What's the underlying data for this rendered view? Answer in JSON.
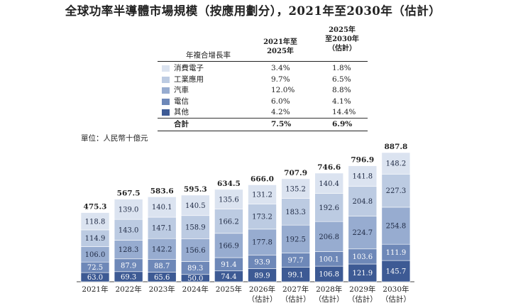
{
  "title": "全球功率半導體市場規模（按應用劃分），2021年至2030年（估計）",
  "cagr_table": {
    "label": "年複合增長率",
    "col1_header": [
      "2021年至",
      "2025年"
    ],
    "col2_header": [
      "2025年",
      "至2030年",
      "（估計）"
    ],
    "rows": [
      {
        "name": "消費電子",
        "c1": "3.4%",
        "c2": "1.8%",
        "color": "#dbe3f0"
      },
      {
        "name": "工業應用",
        "c1": "9.7%",
        "c2": "6.5%",
        "color": "#bccbe2"
      },
      {
        "name": "汽車",
        "c1": "12.0%",
        "c2": "8.8%",
        "color": "#97acd0"
      },
      {
        "name": "電信",
        "c1": "6.0%",
        "c2": "4.1%",
        "color": "#6e88b8"
      },
      {
        "name": "其他",
        "c1": "4.2%",
        "c2": "14.4%",
        "color": "#3d5a94"
      }
    ],
    "total": {
      "name": "合計",
      "c1": "7.5%",
      "c2": "6.9%"
    }
  },
  "unit_label": "單位：人民幣十億元",
  "chart_data": {
    "type": "bar",
    "stacked": true,
    "categories": [
      "2021年",
      "2022年",
      "2023年",
      "2024年",
      "2025年",
      "2026年",
      "2027年",
      "2028年",
      "2029年",
      "2030年"
    ],
    "category_sublabels": [
      "",
      "",
      "",
      "",
      "",
      "（估計）",
      "（估計）",
      "（估計）",
      "（估計）",
      "（估計）"
    ],
    "series": [
      {
        "name": "其他",
        "color": "#3d5a94",
        "values": [
          63.0,
          69.3,
          65.6,
          50.0,
          74.4,
          89.9,
          99.1,
          106.8,
          121.9,
          145.7
        ],
        "labels": [
          "63.0",
          "69.3",
          "65.6",
          "50.0",
          "74.4",
          "89.9",
          "99.1",
          "106.8",
          "121.9",
          "145.7"
        ]
      },
      {
        "name": "電信",
        "color": "#6e88b8",
        "values": [
          72.5,
          87.9,
          88.7,
          89.3,
          91.4,
          93.9,
          97.7,
          100.1,
          103.6,
          111.9
        ],
        "labels": [
          "72.5",
          "87.9",
          "88.7",
          "89.3",
          "91.4",
          "93.9",
          "97.7",
          "100.1",
          "103.6",
          "111.9"
        ]
      },
      {
        "name": "汽車",
        "color": "#97acd0",
        "values": [
          106.0,
          128.3,
          142.2,
          156.6,
          166.9,
          177.8,
          192.5,
          206.8,
          224.7,
          254.8
        ],
        "labels": [
          "106.0",
          "128.3",
          "142.2",
          "156.6",
          "166.9",
          "177.8",
          "192.5",
          "206.8",
          "224.7",
          "254.8"
        ]
      },
      {
        "name": "工業應用",
        "color": "#bccbe2",
        "values": [
          114.9,
          143.0,
          147.1,
          158.9,
          166.2,
          173.2,
          183.3,
          192.6,
          204.8,
          227.3
        ],
        "labels": [
          "114.9",
          "143.0",
          "147.1",
          "158.9",
          "166.2",
          "173.2",
          "183.3",
          "192.6",
          "204.8",
          "227.3"
        ]
      },
      {
        "name": "消費電子",
        "color": "#dbe3f0",
        "values": [
          118.8,
          139.0,
          140.1,
          140.5,
          135.6,
          131.2,
          135.2,
          140.4,
          141.8,
          148.2
        ],
        "labels": [
          "118.8",
          "139.0",
          "140.1",
          "140.5",
          "135.6",
          "131.2",
          "135.2",
          "140.4",
          "141.8",
          "148.2"
        ]
      }
    ],
    "totals": [
      475.3,
      567.5,
      583.6,
      595.3,
      634.5,
      666.0,
      707.9,
      746.6,
      796.9,
      887.8
    ],
    "total_labels": [
      "475.3",
      "567.5",
      "583.6",
      "595.3",
      "634.5",
      "666.0",
      "707.9",
      "746.6",
      "796.9",
      "887.8"
    ],
    "ylim": [
      0,
      887.8
    ]
  }
}
